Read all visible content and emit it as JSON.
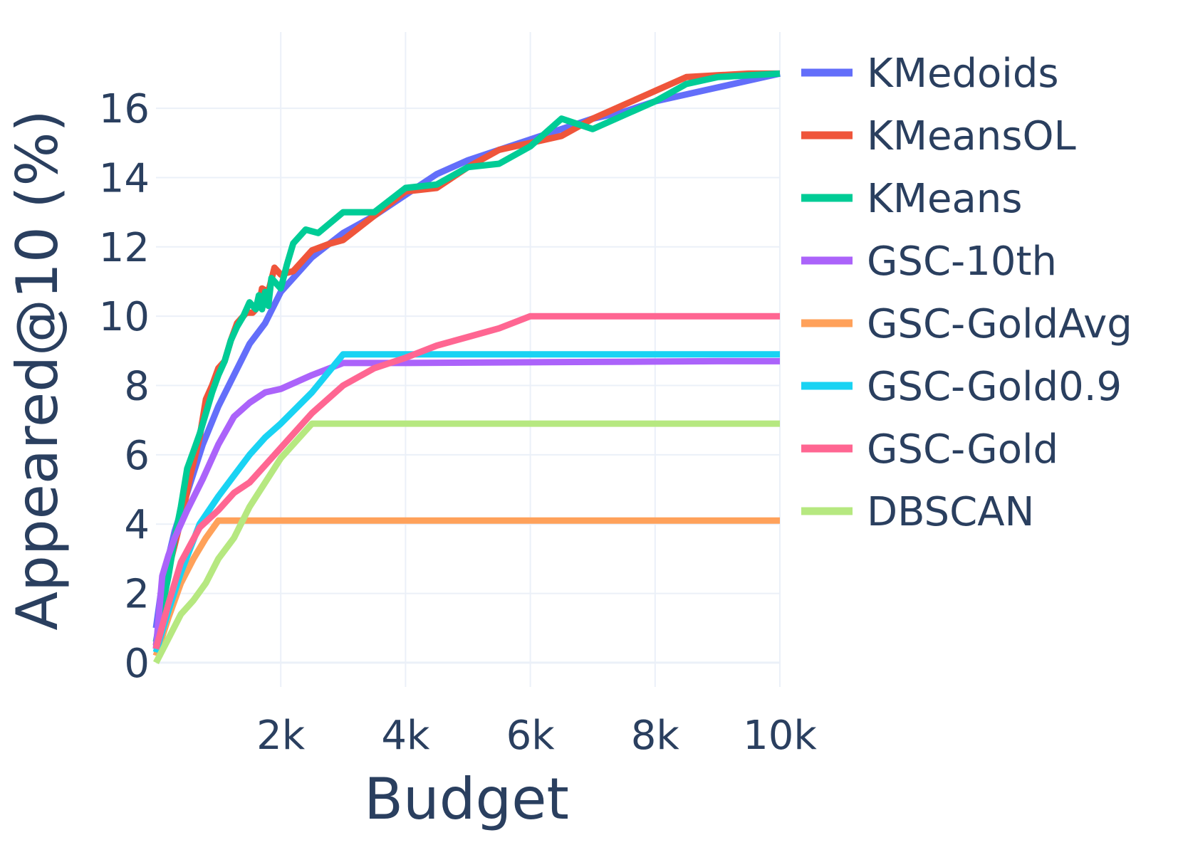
{
  "chart_data": {
    "type": "line",
    "title": "",
    "xlabel": "Budget",
    "ylabel": "Appeared@10 (%)",
    "xlim": [
      0,
      10000
    ],
    "ylim": [
      -0.7,
      18.2
    ],
    "x_ticks": [
      {
        "value": 2000,
        "label": "2k"
      },
      {
        "value": 4000,
        "label": "4k"
      },
      {
        "value": 6000,
        "label": "6k"
      },
      {
        "value": 8000,
        "label": "8k"
      },
      {
        "value": 10000,
        "label": "10k"
      }
    ],
    "y_ticks": [
      {
        "value": 0,
        "label": "0"
      },
      {
        "value": 2,
        "label": "2"
      },
      {
        "value": 4,
        "label": "4"
      },
      {
        "value": 6,
        "label": "6"
      },
      {
        "value": 8,
        "label": "8"
      },
      {
        "value": 10,
        "label": "10"
      },
      {
        "value": 12,
        "label": "12"
      },
      {
        "value": 14,
        "label": "14"
      },
      {
        "value": 16,
        "label": "16"
      }
    ],
    "legend_position": "right",
    "series": [
      {
        "name": "KMedoids",
        "color": "#636efa",
        "x": [
          0,
          100,
          300,
          500,
          750,
          1000,
          1250,
          1500,
          1750,
          2000,
          2500,
          3000,
          3500,
          4000,
          4500,
          5000,
          5500,
          6000,
          6500,
          7000,
          7500,
          8000,
          8500,
          9000,
          9500,
          10000
        ],
        "y": [
          1.0,
          2.3,
          3.8,
          4.9,
          6.3,
          7.4,
          8.3,
          9.2,
          9.8,
          10.7,
          11.7,
          12.4,
          12.9,
          13.5,
          14.1,
          14.5,
          14.8,
          15.1,
          15.4,
          15.7,
          15.9,
          16.2,
          16.4,
          16.6,
          16.8,
          17.0
        ]
      },
      {
        "name": "KMeansOL",
        "color": "#ef553b",
        "x": [
          0,
          100,
          200,
          300,
          450,
          550,
          700,
          800,
          900,
          1000,
          1100,
          1200,
          1300,
          1450,
          1550,
          1650,
          1700,
          1800,
          1900,
          2000,
          2200,
          2500,
          2800,
          3000,
          3500,
          4000,
          4500,
          5000,
          5500,
          6000,
          6500,
          7000,
          7500,
          8000,
          8500,
          9000,
          9500,
          10000
        ],
        "y": [
          0.5,
          1.8,
          2.7,
          3.4,
          4.5,
          5.4,
          6.5,
          7.6,
          8.0,
          8.5,
          8.7,
          9.3,
          9.8,
          10.1,
          10.1,
          10.3,
          10.8,
          10.7,
          11.4,
          11.2,
          11.3,
          11.9,
          12.1,
          12.2,
          12.9,
          13.6,
          13.7,
          14.3,
          14.8,
          15.0,
          15.2,
          15.7,
          16.1,
          16.5,
          16.9,
          16.95,
          17.0,
          17.0
        ]
      },
      {
        "name": "KMeans",
        "color": "#00cc96",
        "x": [
          0,
          100,
          200,
          300,
          400,
          500,
          600,
          700,
          800,
          900,
          1000,
          1100,
          1200,
          1300,
          1400,
          1500,
          1600,
          1650,
          1700,
          1750,
          1800,
          1850,
          1900,
          2000,
          2100,
          2200,
          2400,
          2600,
          2800,
          3000,
          3250,
          3500,
          4000,
          4250,
          4500,
          5000,
          5500,
          6000,
          6500,
          7000,
          7500,
          8000,
          8500,
          9000,
          9500,
          10000
        ],
        "y": [
          0.6,
          1.6,
          2.5,
          3.6,
          4.5,
          5.6,
          6.1,
          6.6,
          7.2,
          7.8,
          8.3,
          8.7,
          9.3,
          9.7,
          10.0,
          10.4,
          10.2,
          10.6,
          10.2,
          10.7,
          10.3,
          11.1,
          11.0,
          10.8,
          11.5,
          12.1,
          12.5,
          12.4,
          12.7,
          13.0,
          13.0,
          13.0,
          13.7,
          13.75,
          13.8,
          14.3,
          14.4,
          14.9,
          15.7,
          15.4,
          15.8,
          16.2,
          16.7,
          16.9,
          16.95,
          17.0
        ]
      },
      {
        "name": "GSC-10th",
        "color": "#ab63fa",
        "x": [
          0,
          100,
          200,
          300,
          500,
          750,
          1000,
          1250,
          1500,
          1750,
          2000,
          2500,
          3000,
          3500,
          4000,
          5000,
          6000,
          7000,
          8000,
          9000,
          10000
        ],
        "y": [
          0.4,
          2.5,
          3.1,
          3.6,
          4.4,
          5.3,
          6.3,
          7.1,
          7.5,
          7.8,
          7.9,
          8.3,
          8.65,
          8.65,
          8.65,
          8.66,
          8.67,
          8.68,
          8.69,
          8.7,
          8.7
        ]
      },
      {
        "name": "GSC-GoldAvg",
        "color": "#ffa15a",
        "x": [
          0,
          200,
          400,
          600,
          800,
          1000,
          1500,
          2000,
          3000,
          4000,
          5000,
          6000,
          7000,
          8000,
          9000,
          10000
        ],
        "y": [
          0.2,
          1.3,
          2.3,
          3.0,
          3.6,
          4.1,
          4.1,
          4.1,
          4.1,
          4.1,
          4.1,
          4.1,
          4.1,
          4.1,
          4.1,
          4.1
        ]
      },
      {
        "name": "GSC-Gold0.9",
        "color": "#19d3f3",
        "x": [
          0,
          200,
          400,
          700,
          1000,
          1250,
          1500,
          1750,
          2000,
          2500,
          3000,
          3500,
          4000,
          5000,
          6000,
          7000,
          8000,
          9000,
          10000
        ],
        "y": [
          0.3,
          1.5,
          2.6,
          4.0,
          4.8,
          5.4,
          6.0,
          6.5,
          6.9,
          7.8,
          8.9,
          8.9,
          8.9,
          8.9,
          8.9,
          8.9,
          8.9,
          8.9,
          8.9
        ]
      },
      {
        "name": "GSC-Gold",
        "color": "#ff6692",
        "x": [
          0,
          200,
          400,
          700,
          1000,
          1250,
          1500,
          1750,
          2000,
          2500,
          3000,
          3500,
          4000,
          4500,
          5000,
          5500,
          6000,
          6500,
          7000,
          8000,
          9000,
          10000
        ],
        "y": [
          0.4,
          1.7,
          2.9,
          3.9,
          4.4,
          4.9,
          5.2,
          5.7,
          6.2,
          7.2,
          8.0,
          8.5,
          8.8,
          9.15,
          9.4,
          9.65,
          10.0,
          10.0,
          10.0,
          10.0,
          10.0,
          10.0
        ]
      },
      {
        "name": "DBSCAN",
        "color": "#b6e880",
        "x": [
          0,
          200,
          400,
          600,
          800,
          1000,
          1250,
          1500,
          1750,
          2000,
          2250,
          2500,
          3000,
          4000,
          5000,
          6000,
          7000,
          8000,
          9000,
          10000
        ],
        "y": [
          0.0,
          0.7,
          1.4,
          1.8,
          2.3,
          3.0,
          3.6,
          4.5,
          5.2,
          5.9,
          6.4,
          6.9,
          6.9,
          6.9,
          6.9,
          6.9,
          6.9,
          6.9,
          6.9,
          6.9
        ]
      }
    ]
  }
}
